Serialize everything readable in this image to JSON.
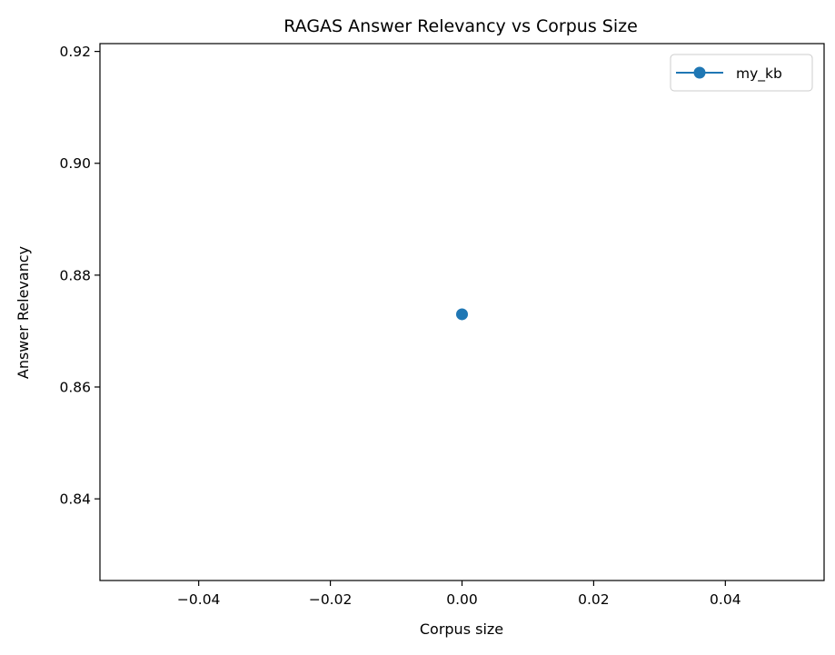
{
  "chart_data": {
    "type": "line",
    "title": "RAGAS Answer Relevancy vs Corpus Size",
    "xlabel": "Corpus size",
    "ylabel": "Answer Relevancy",
    "xlim": [
      -0.055,
      0.055
    ],
    "ylim": [
      0.8254,
      0.9214
    ],
    "xticks": [
      -0.04,
      -0.02,
      0.0,
      0.02,
      0.04
    ],
    "xtick_labels": [
      "−0.04",
      "−0.02",
      "0.00",
      "0.02",
      "0.04"
    ],
    "yticks": [
      0.84,
      0.86,
      0.88,
      0.9,
      0.92
    ],
    "ytick_labels": [
      "0.84",
      "0.86",
      "0.88",
      "0.90",
      "0.92"
    ],
    "grid": false,
    "legend_position": "top-right",
    "series": [
      {
        "name": "my_kb",
        "color": "#1f77b4",
        "marker": "circle",
        "x": [
          0
        ],
        "y": [
          0.873
        ]
      }
    ]
  }
}
